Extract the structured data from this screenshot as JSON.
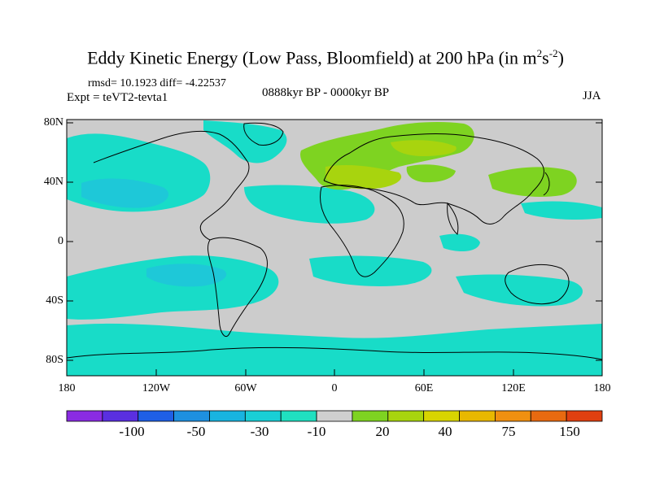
{
  "title": {
    "main": "Eddy Kinetic Energy (Low Pass, Bloomfield) at 200 hPa (in m",
    "sup1": "2",
    "mid": "s",
    "sup2": "-2",
    "end": ")"
  },
  "stats": "rmsd= 10.1923 diff= -4.22537",
  "expt": "Expt = teVT2-tevta1",
  "period": "0888kyr BP - 0000kyr BP",
  "season": "JJA",
  "axes": {
    "y_ticks": [
      "80N",
      "40N",
      "0",
      "40S",
      "80S"
    ],
    "x_ticks": [
      "180",
      "120W",
      "60W",
      "0",
      "60E",
      "120E",
      "180"
    ]
  },
  "colorbar": {
    "colors": [
      "#8a2be2",
      "#5a2fe0",
      "#1f5fe6",
      "#1e90e0",
      "#18b4e0",
      "#19cfd6",
      "#20e0c0",
      "#cfcfcf",
      "#7ed321",
      "#a8d40e",
      "#d8d400",
      "#e8b800",
      "#f09010",
      "#e86a10",
      "#e04010"
    ],
    "labels": [
      "-100",
      "-50",
      "-30",
      "-10",
      "20",
      "40",
      "75",
      "150"
    ]
  },
  "field_colors": {
    "ocean_pos": "#18dcc8",
    "ocean_deep": "#1ec8d8",
    "green": "#7ed321",
    "light_green": "#a8d40e",
    "background": "#cccccc"
  }
}
